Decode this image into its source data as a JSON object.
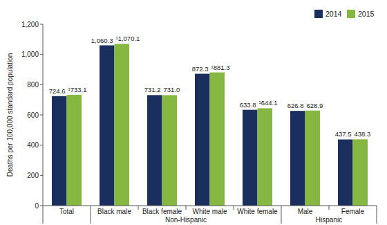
{
  "chart_data": {
    "type": "bar",
    "y_label": "Deaths per 100,000 standard population",
    "categories": [
      "Total",
      "Black male",
      "Black female",
      "White male",
      "White female",
      "Male",
      "Female"
    ],
    "category_groups": [
      {
        "label": "Non-Hispanic",
        "categories": [
          "Black male",
          "Black female",
          "White male",
          "White female"
        ]
      },
      {
        "label": "Hispanic",
        "categories": [
          "Male",
          "Female"
        ]
      }
    ],
    "series": [
      {
        "name": "2014",
        "color": "#1b2f5e",
        "values": [
          724.6,
          1060.3,
          731.2,
          872.3,
          633.8,
          626.8,
          437.5
        ],
        "value_labels": [
          "724.6",
          "1,060.3",
          "731.2",
          "872.3",
          "633.8",
          "626.8",
          "437.5"
        ]
      },
      {
        "name": "2015",
        "color": "#86b841",
        "values": [
          733.1,
          1070.1,
          731.0,
          881.3,
          644.1,
          628.9,
          438.3
        ],
        "value_labels": [
          "¹733.1",
          "¹1,070.1",
          "731.0",
          "¹881.3",
          "¹644.1",
          "628.9",
          "438.3"
        ]
      }
    ],
    "ylim": [
      0,
      1200
    ],
    "yticks": [
      0,
      200,
      400,
      600,
      800,
      {
        "value": 1000,
        "label": "1,000"
      },
      {
        "value": 1200,
        "label": "1,200"
      }
    ],
    "grid": false,
    "legend": "top-right",
    "data_labels": true
  }
}
